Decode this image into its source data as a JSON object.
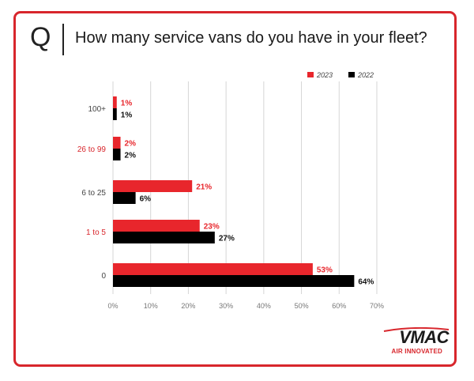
{
  "header": {
    "q_letter": "Q",
    "question": "How many service vans do you have in your fleet?"
  },
  "brand": {
    "name": "VMAC",
    "tagline": "AIR INNOVATED",
    "accent_color": "#d8262c"
  },
  "chart_data": {
    "type": "bar",
    "orientation": "horizontal",
    "categories": [
      "100+",
      "26 to 99",
      "6 to 25",
      "1 to 5",
      "0"
    ],
    "category_colors": [
      "#444444",
      "#d8262c",
      "#444444",
      "#d8262c",
      "#444444"
    ],
    "series": [
      {
        "name": "2023",
        "color": "#e8262c",
        "values": [
          1,
          2,
          21,
          23,
          53
        ],
        "labels": [
          "1%",
          "2%",
          "21%",
          "23%",
          "53%"
        ]
      },
      {
        "name": "2022",
        "color": "#000000",
        "values": [
          1,
          2,
          6,
          27,
          64
        ],
        "labels": [
          "1%",
          "2%",
          "6%",
          "27%",
          "64%"
        ]
      }
    ],
    "xlim": [
      0,
      70
    ],
    "xticks": [
      "0%",
      "10%",
      "20%",
      "30%",
      "40%",
      "50%",
      "60%",
      "70%"
    ],
    "grid": true,
    "legend_position": "top-right"
  }
}
